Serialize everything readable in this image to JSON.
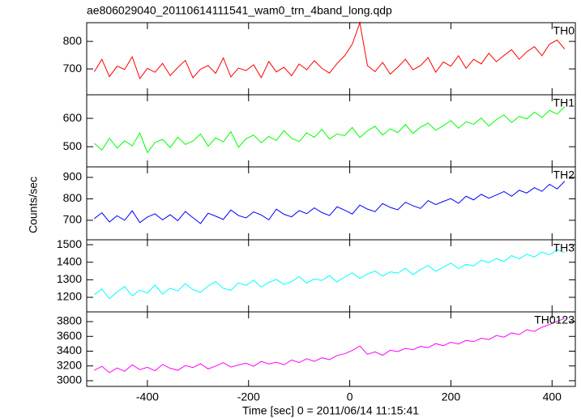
{
  "chart_data": {
    "type": "line",
    "title": "ae806029040_20110614111541_wam0_trn_4band_long.qdp",
    "xlabel": "Time [sec]  0 = 2011/06/14 11:15:41",
    "ylabel": "Counts/sec",
    "xlim": [
      -520,
      446
    ],
    "xticks": [
      -400,
      -200,
      0,
      200,
      400
    ],
    "x": [
      -505,
      -490,
      -475,
      -460,
      -445,
      -430,
      -415,
      -400,
      -385,
      -370,
      -355,
      -340,
      -325,
      -310,
      -295,
      -280,
      -265,
      -250,
      -235,
      -220,
      -205,
      -190,
      -175,
      -160,
      -145,
      -130,
      -115,
      -100,
      -85,
      -70,
      -55,
      -40,
      -25,
      -10,
      5,
      20,
      35,
      50,
      65,
      80,
      95,
      110,
      125,
      140,
      155,
      170,
      185,
      200,
      215,
      230,
      245,
      260,
      275,
      290,
      305,
      320,
      335,
      350,
      365,
      380,
      395,
      410,
      425
    ],
    "series": [
      {
        "name": "TH0",
        "color": "#ff0000",
        "ylim": [
          606,
          868
        ],
        "yticks": [
          700,
          800
        ],
        "values": [
          690,
          735,
          672,
          710,
          698,
          744,
          665,
          702,
          688,
          720,
          676,
          705,
          731,
          668,
          699,
          712,
          684,
          740,
          671,
          703,
          694,
          715,
          668,
          727,
          689,
          706,
          675,
          718,
          697,
          730,
          702,
          685,
          720,
          748,
          790,
          868,
          712,
          690,
          724,
          681,
          706,
          735,
          697,
          712,
          741,
          688,
          725,
          710,
          748,
          702,
          735,
          718,
          757,
          726,
          749,
          770,
          735,
          762,
          781,
          748,
          790,
          805,
          772
        ]
      },
      {
        "name": "TH1",
        "color": "#00ff00",
        "ylim": [
          429,
          683
        ],
        "yticks": [
          500,
          600
        ],
        "values": [
          512,
          488,
          530,
          495,
          521,
          503,
          548,
          479,
          515,
          526,
          497,
          534,
          508,
          520,
          545,
          502,
          531,
          517,
          553,
          498,
          528,
          541,
          514,
          536,
          522,
          557,
          530,
          518,
          549,
          533,
          561,
          527,
          545,
          539,
          568,
          532,
          556,
          572,
          541,
          563,
          550,
          578,
          547,
          569,
          583,
          558,
          574,
          592,
          565,
          588,
          579,
          601,
          573,
          596,
          612,
          585,
          607,
          598,
          622,
          603,
          628,
          615,
          641
        ]
      },
      {
        "name": "TH2",
        "color": "#0000ff",
        "ylim": [
          609,
          949
        ],
        "yticks": [
          700,
          800,
          900
        ],
        "values": [
          708,
          735,
          692,
          721,
          700,
          744,
          689,
          715,
          730,
          702,
          726,
          698,
          741,
          712,
          685,
          733,
          719,
          704,
          748,
          722,
          711,
          739,
          725,
          702,
          752,
          728,
          716,
          745,
          731,
          758,
          736,
          722,
          763,
          747,
          729,
          771,
          752,
          740,
          778,
          760,
          749,
          784,
          768,
          755,
          792,
          773,
          788,
          801,
          779,
          812,
          795,
          821,
          803,
          818,
          834,
          812,
          840,
          827,
          852,
          835,
          868,
          846,
          882
        ]
      },
      {
        "name": "TH3",
        "color": "#00ffff",
        "ylim": [
          1117,
          1528
        ],
        "yticks": [
          1200,
          1300,
          1400,
          1500
        ],
        "values": [
          1215,
          1248,
          1192,
          1230,
          1262,
          1208,
          1241,
          1225,
          1270,
          1219,
          1252,
          1236,
          1278,
          1244,
          1228,
          1265,
          1289,
          1251,
          1240,
          1282,
          1268,
          1297,
          1259,
          1285,
          1302,
          1273,
          1290,
          1318,
          1281,
          1305,
          1296,
          1324,
          1288,
          1315,
          1340,
          1308,
          1332,
          1350,
          1321,
          1345,
          1338,
          1366,
          1329,
          1358,
          1381,
          1349,
          1372,
          1395,
          1364,
          1388,
          1379,
          1412,
          1398,
          1421,
          1405,
          1438,
          1419,
          1446,
          1430,
          1458,
          1442,
          1471,
          1455
        ]
      },
      {
        "name": "TH0123",
        "color": "#ff00ff",
        "ylim": [
          2923,
          3932
        ],
        "yticks": [
          3000,
          3200,
          3400,
          3600,
          3800
        ],
        "values": [
          3140,
          3195,
          3110,
          3172,
          3128,
          3215,
          3150,
          3182,
          3135,
          3220,
          3168,
          3142,
          3205,
          3178,
          3230,
          3160,
          3198,
          3245,
          3185,
          3212,
          3238,
          3195,
          3262,
          3228,
          3250,
          3215,
          3280,
          3245,
          3298,
          3262,
          3310,
          3285,
          3342,
          3365,
          3410,
          3470,
          3358,
          3390,
          3345,
          3412,
          3395,
          3438,
          3420,
          3465,
          3448,
          3502,
          3475,
          3520,
          3498,
          3545,
          3530,
          3575,
          3558,
          3612,
          3590,
          3648,
          3625,
          3690,
          3668,
          3725,
          3760,
          3805,
          3842
        ]
      }
    ]
  }
}
